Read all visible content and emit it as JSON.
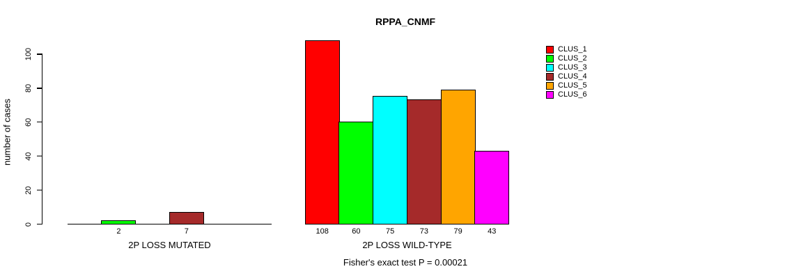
{
  "chart_data": {
    "type": "bar",
    "title": "RPPA_CNMF",
    "ylabel": "number of cases",
    "xlabel": "",
    "ylim": [
      0,
      110
    ],
    "yticks": [
      0,
      20,
      40,
      60,
      80,
      100
    ],
    "grid": false,
    "legend_position": "right",
    "categories": [
      "2P LOSS MUTATED",
      "2P LOSS WILD-TYPE"
    ],
    "series": [
      {
        "name": "CLUS_1",
        "color": "#ff0000",
        "values": [
          0,
          108
        ]
      },
      {
        "name": "CLUS_2",
        "color": "#00ff00",
        "values": [
          2,
          60
        ]
      },
      {
        "name": "CLUS_3",
        "color": "#00ffff",
        "values": [
          0,
          75
        ]
      },
      {
        "name": "CLUS_4",
        "color": "#a52a2a",
        "values": [
          7,
          73
        ]
      },
      {
        "name": "CLUS_5",
        "color": "#ffa500",
        "values": [
          0,
          79
        ]
      },
      {
        "name": "CLUS_6",
        "color": "#ff00ff",
        "values": [
          0,
          43
        ]
      }
    ],
    "bar_value_labels": {
      "2P LOSS MUTATED": [
        "",
        "2",
        "",
        "7",
        "",
        ""
      ],
      "2P LOSS WILD-TYPE": [
        "108",
        "60",
        "75",
        "73",
        "79",
        "43"
      ]
    },
    "annotation": "Fisher's exact test P = 0.00021"
  }
}
